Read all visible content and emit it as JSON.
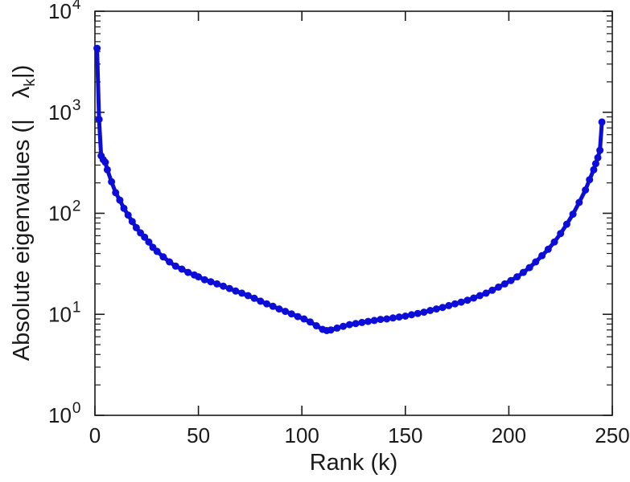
{
  "figure": {
    "background": "#ffffff"
  },
  "chart_data": {
    "type": "line",
    "title": "",
    "xlabel": "Rank (k)",
    "ylabel_prefix": "Absolute eigenvalues (|",
    "ylabel_lambda": "λ",
    "ylabel_sub": "k",
    "ylabel_suffix": "|)",
    "line_color": "#0d0dd9",
    "axis_color": "#1a1a1a",
    "marker": "circle",
    "legend": "none",
    "grid": "off",
    "xlim": [
      0,
      250
    ],
    "xticks": [
      0,
      50,
      100,
      150,
      200,
      250
    ],
    "y_scale": "log10",
    "ylog_lim": [
      0,
      4
    ],
    "ytick_exponents": [
      0,
      1,
      2,
      3,
      4
    ],
    "series": [
      {
        "name": "absolute eigenvalues",
        "x": [
          1,
          2,
          3,
          4,
          5,
          6,
          8,
          10,
          12,
          14,
          16,
          18,
          20,
          22,
          24,
          26,
          28,
          30,
          33,
          36,
          39,
          42,
          45,
          48,
          50,
          53,
          56,
          59,
          62,
          65,
          68,
          71,
          74,
          77,
          80,
          83,
          86,
          89,
          92,
          95,
          98,
          101,
          104,
          107,
          110,
          112,
          114,
          117,
          120,
          123,
          126,
          129,
          132,
          135,
          138,
          141,
          144,
          147,
          150,
          153,
          156,
          159,
          162,
          165,
          168,
          171,
          174,
          177,
          180,
          183,
          186,
          189,
          192,
          195,
          198,
          201,
          204,
          207,
          210,
          213,
          216,
          219,
          222,
          225,
          228,
          231,
          234,
          237,
          239,
          241,
          242,
          243,
          244,
          245
        ],
        "y": [
          4300,
          850,
          370,
          340,
          320,
          270,
          205,
          160,
          135,
          112,
          96,
          83,
          72,
          64,
          58,
          52,
          46,
          42,
          37,
          33,
          30,
          28,
          26,
          24.5,
          23.5,
          22,
          21,
          20,
          19,
          18,
          17,
          16.2,
          15.3,
          14.4,
          13.5,
          12.7,
          12,
          11.3,
          10.7,
          10.1,
          9.5,
          9,
          8.4,
          7.7,
          7.1,
          6.9,
          7,
          7.3,
          7.6,
          7.9,
          8.1,
          8.3,
          8.5,
          8.7,
          8.9,
          9,
          9.2,
          9.4,
          9.6,
          9.9,
          10.2,
          10.5,
          10.9,
          11.3,
          11.7,
          12.2,
          12.7,
          13.2,
          13.8,
          14.5,
          15.3,
          16.2,
          17.3,
          18.6,
          20,
          21.6,
          23.5,
          26,
          29,
          33,
          38,
          44,
          52,
          63,
          78,
          98,
          128,
          170,
          215,
          270,
          310,
          355,
          420,
          800
        ]
      }
    ]
  }
}
